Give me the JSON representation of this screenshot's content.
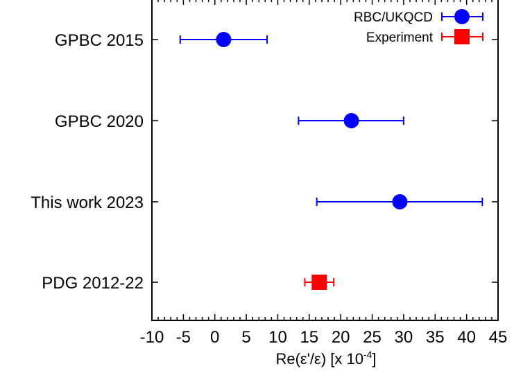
{
  "chart_data": {
    "type": "scatter",
    "xlabel": "Re(ε'/ε) [x 10",
    "xlabel_sup": "-4",
    "xlabel_end": "]",
    "xlim": [
      -10,
      45
    ],
    "xticks": [
      "-10",
      "-5",
      "0",
      "5",
      "10",
      "15",
      "20",
      "25",
      "30",
      "35",
      "40",
      "45"
    ],
    "categories": [
      "GPBC 2015",
      "GPBC 2020",
      "This work 2023",
      "PDG 2012-22"
    ],
    "series": [
      {
        "name": "RBC/UKQCD",
        "color": "#0000ff",
        "marker": "circle",
        "points": [
          {
            "category": "GPBC 2015",
            "value": 1.4,
            "err_low": -5.5,
            "err_high": 8.3
          },
          {
            "category": "GPBC 2020",
            "value": 21.7,
            "err_low": 13.3,
            "err_high": 30.0
          },
          {
            "category": "This work 2023",
            "value": 29.4,
            "err_low": 16.2,
            "err_high": 42.5
          }
        ]
      },
      {
        "name": "Experiment",
        "color": "#ff0000",
        "marker": "square",
        "points": [
          {
            "category": "PDG 2012-22",
            "value": 16.6,
            "err_low": 14.3,
            "err_high": 18.9
          }
        ]
      }
    ],
    "legend_position": "top-right",
    "grid": false
  }
}
